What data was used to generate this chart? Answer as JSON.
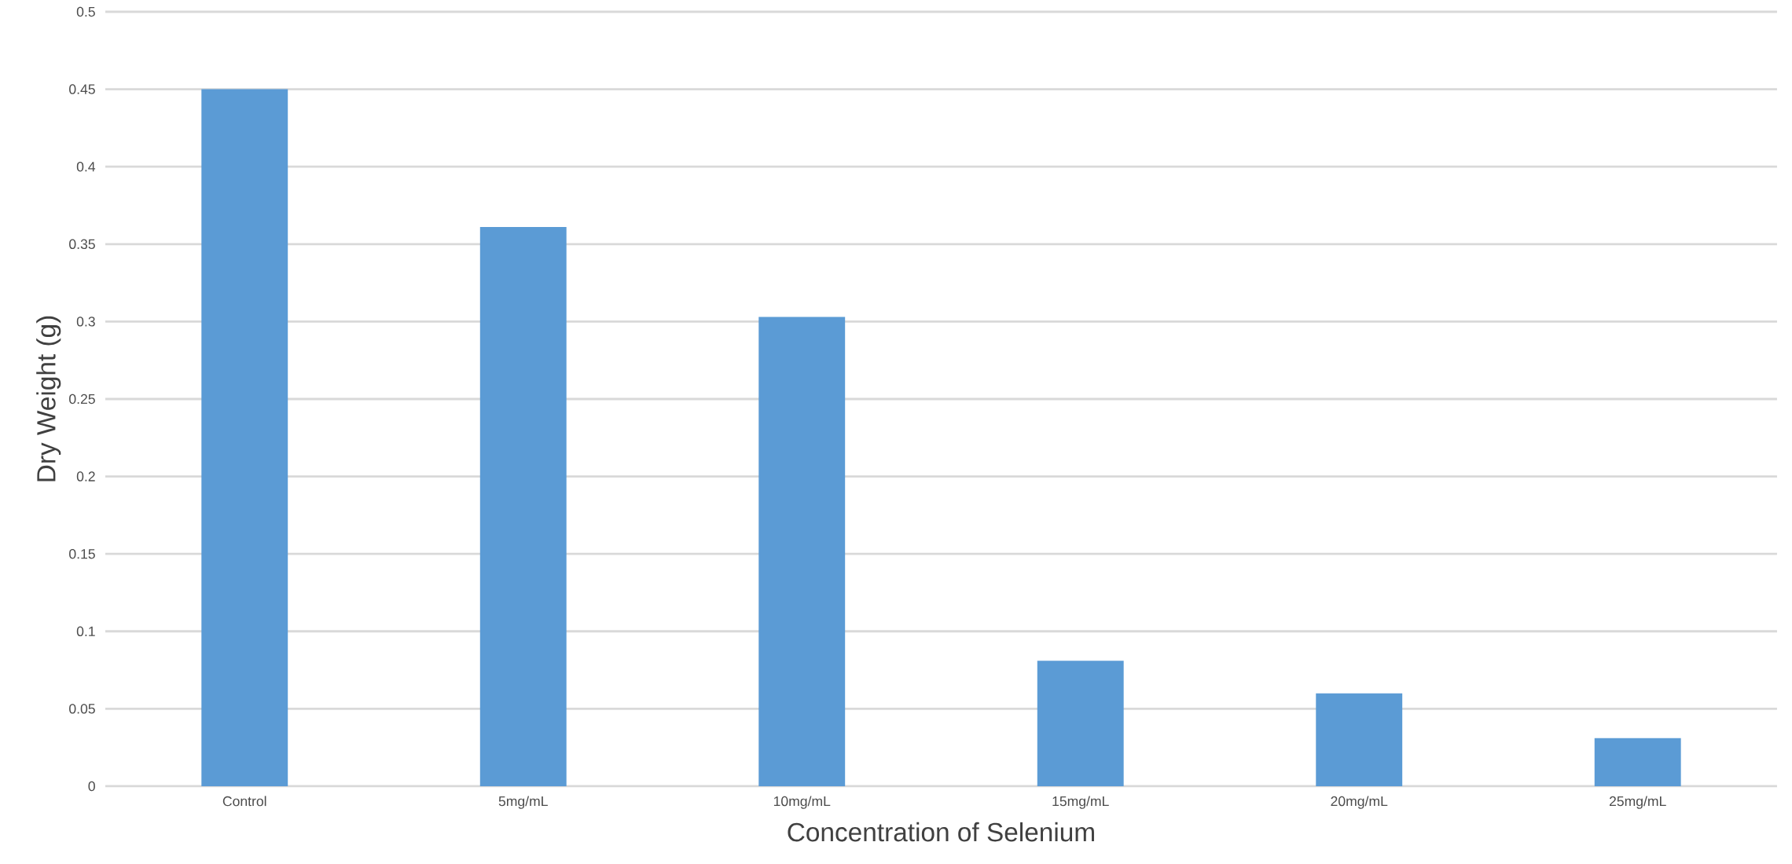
{
  "chart_data": {
    "type": "bar",
    "xlabel": "Concentration of Selenium",
    "ylabel": "Dry Weight (g)",
    "categories": [
      "Control",
      "5mg/mL",
      "10mg/mL",
      "15mg/mL",
      "20mg/mL",
      "25mg/mL"
    ],
    "values": [
      0.45,
      0.361,
      0.303,
      0.081,
      0.06,
      0.031
    ],
    "color": "#5b9bd5",
    "ylim": [
      0,
      0.5
    ],
    "yticks": [
      0,
      0.05,
      0.1,
      0.15,
      0.2,
      0.25,
      0.3,
      0.35,
      0.4,
      0.45,
      0.5
    ],
    "grid": "y"
  }
}
